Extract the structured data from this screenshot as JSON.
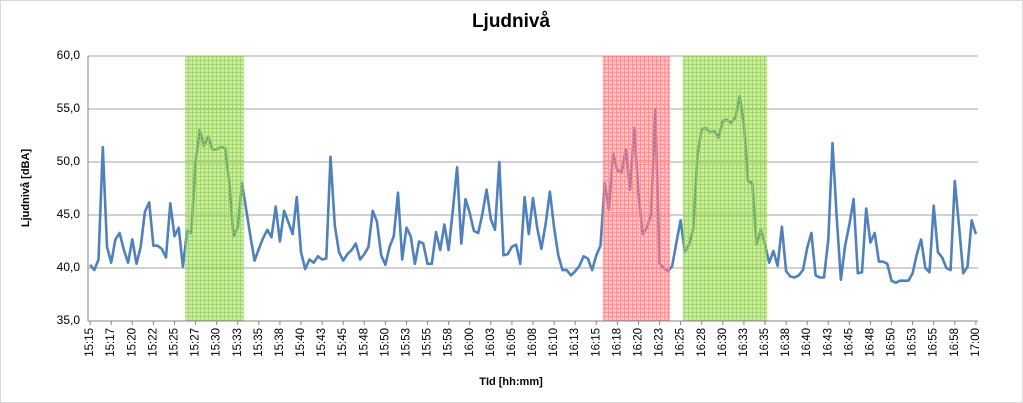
{
  "chart_data": {
    "type": "line",
    "title": "Ljudnivå",
    "x_label": "TId [hh:mm]",
    "y_label": "Ljudnivå [dBA]",
    "categories": [
      "15:15",
      null,
      null,
      null,
      null,
      "15:17",
      null,
      null,
      null,
      null,
      "15:20",
      null,
      null,
      null,
      null,
      "15:22",
      null,
      null,
      null,
      null,
      "15:25",
      null,
      null,
      null,
      null,
      "15:27",
      null,
      null,
      null,
      null,
      "15:30",
      null,
      null,
      null,
      null,
      "15:33",
      null,
      null,
      null,
      null,
      "15:35",
      null,
      null,
      null,
      null,
      "15:38",
      null,
      null,
      null,
      null,
      "15:40",
      null,
      null,
      null,
      null,
      "15:43",
      null,
      null,
      null,
      null,
      "15:45",
      null,
      null,
      null,
      null,
      "15:48",
      null,
      null,
      null,
      null,
      "15:50",
      null,
      null,
      null,
      null,
      "15:53",
      null,
      null,
      null,
      null,
      "15:55",
      null,
      null,
      null,
      null,
      "15:58",
      null,
      null,
      null,
      null,
      "16:00",
      null,
      null,
      null,
      null,
      "16:03",
      null,
      null,
      null,
      null,
      "16:05",
      null,
      null,
      null,
      null,
      "16:08",
      null,
      null,
      null,
      null,
      "16:10",
      null,
      null,
      null,
      null,
      "16:13",
      null,
      null,
      null,
      null,
      "16:15",
      null,
      null,
      null,
      null,
      "16:18",
      null,
      null,
      null,
      null,
      "16:20",
      null,
      null,
      null,
      null,
      "16:23",
      null,
      null,
      null,
      null,
      "16:25",
      null,
      null,
      null,
      null,
      "16:28",
      null,
      null,
      null,
      null,
      "16:30",
      null,
      null,
      null,
      null,
      "16:33",
      null,
      null,
      null,
      null,
      "16:35",
      null,
      null,
      null,
      null,
      "16:38",
      null,
      null,
      null,
      null,
      "16:40",
      null,
      null,
      null,
      null,
      "16:43",
      null,
      null,
      null,
      null,
      "16:45",
      null,
      null,
      null,
      null,
      "16:48",
      null,
      null,
      null,
      null,
      "16:50",
      null,
      null,
      null,
      null,
      "16:53",
      null,
      null,
      null,
      null,
      "16:55",
      null,
      null,
      null,
      null,
      "16:58",
      null,
      null,
      null,
      null,
      "17:00"
    ],
    "series": [
      {
        "name": "Ljudnivå",
        "color": "#4f81bd",
        "values": [
          40.3,
          39.8,
          40.8,
          51.4,
          42,
          40.5,
          42.7,
          43.3,
          41.7,
          40.5,
          42.7,
          40.4,
          42,
          45.3,
          46.2,
          42.1,
          42.1,
          41.8,
          41,
          46.1,
          43,
          43.8,
          40.1,
          43.5,
          43.3,
          50,
          53,
          51.5,
          52.4,
          51.2,
          51.2,
          51.4,
          51.3,
          48,
          43,
          43.8,
          48,
          45.5,
          43,
          40.7,
          41.8,
          42.8,
          43.6,
          42.9,
          45.8,
          42.5,
          45.4,
          44.3,
          43.2,
          46.7,
          41.5,
          39.9,
          40.8,
          40.5,
          41.1,
          40.8,
          40.9,
          50.5,
          44,
          41.5,
          40.7,
          41.3,
          41.7,
          42.3,
          40.8,
          41.3,
          42,
          45.4,
          44.4,
          41.2,
          40.3,
          42,
          43,
          47.1,
          40.8,
          43.8,
          43,
          40.4,
          42.5,
          42.3,
          40.4,
          40.4,
          43.4,
          41.7,
          44.1,
          41.7,
          45.5,
          49.5,
          42.3,
          46.5,
          45.2,
          43.5,
          43.3,
          45.1,
          47.4,
          44.6,
          43.6,
          50,
          41.2,
          41.3,
          42,
          42.2,
          40.4,
          46.7,
          43.2,
          46.6,
          43.8,
          41.8,
          44.2,
          47.2,
          43.8,
          41.2,
          39.8,
          39.8,
          39.3,
          39.7,
          40.2,
          41.1,
          40.9,
          39.8,
          41.2,
          42.1,
          48,
          45.5,
          50.8,
          49.2,
          49,
          51.2,
          47.4,
          53.2,
          47,
          43.2,
          43.8,
          45,
          55,
          40.4,
          40,
          39.7,
          40.2,
          42.4,
          44.5,
          41.5,
          42.2,
          43.7,
          50.7,
          53.1,
          53.2,
          52.8,
          52.9,
          52.3,
          53.9,
          54,
          53.7,
          54.2,
          56.2,
          53.6,
          48.2,
          48,
          42.2,
          43.6,
          42.2,
          40.5,
          41.6,
          40.2,
          43.9,
          39.7,
          39.2,
          39.1,
          39.3,
          39.8,
          41.9,
          43.3,
          39.3,
          39.1,
          39.1,
          42.7,
          51.8,
          44.8,
          38.9,
          42.1,
          44.1,
          46.5,
          39.5,
          39.6,
          45.6,
          42.4,
          43.3,
          40.6,
          40.6,
          40.4,
          38.8,
          38.6,
          38.8,
          38.8,
          38.8,
          39.5,
          41.3,
          42.7,
          40,
          39.6,
          45.9,
          41.5,
          41,
          40,
          39.8,
          48.2,
          44,
          39.5,
          40.1,
          44.5,
          43.2
        ]
      }
    ],
    "highlights": [
      {
        "from": 23,
        "to": 36,
        "color": "#92d050"
      },
      {
        "from": 122,
        "to": 137,
        "color": "#ff8080"
      },
      {
        "from": 141,
        "to": 160,
        "color": "#92d050"
      }
    ],
    "ylim": [
      35,
      60
    ],
    "yticks": [
      {
        "value": 35,
        "label": "35,0"
      },
      {
        "value": 40,
        "label": "40,0"
      },
      {
        "value": 45,
        "label": "45,0"
      },
      {
        "value": 50,
        "label": "50,0"
      },
      {
        "value": 55,
        "label": "55,0"
      },
      {
        "value": 60,
        "label": "60,0"
      }
    ],
    "grid": true
  }
}
